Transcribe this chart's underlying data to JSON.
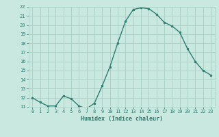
{
  "x": [
    0,
    1,
    2,
    3,
    4,
    5,
    6,
    7,
    8,
    9,
    10,
    11,
    12,
    13,
    14,
    15,
    16,
    17,
    18,
    19,
    20,
    21,
    22,
    23
  ],
  "y": [
    12.0,
    11.5,
    11.1,
    11.1,
    12.2,
    11.9,
    11.1,
    10.8,
    11.4,
    13.3,
    15.4,
    18.0,
    20.4,
    21.7,
    21.9,
    21.8,
    21.2,
    20.3,
    19.9,
    19.2,
    17.4,
    16.0,
    15.0,
    14.5
  ],
  "xlabel": "Humidex (Indice chaleur)",
  "ylim": [
    11,
    22
  ],
  "xlim": [
    -0.5,
    23.5
  ],
  "yticks": [
    11,
    12,
    13,
    14,
    15,
    16,
    17,
    18,
    19,
    20,
    21,
    22
  ],
  "xticks": [
    0,
    1,
    2,
    3,
    4,
    5,
    6,
    7,
    8,
    9,
    10,
    11,
    12,
    13,
    14,
    15,
    16,
    17,
    18,
    19,
    20,
    21,
    22,
    23
  ],
  "line_color": "#2e7d6e",
  "marker_color": "#2e7d6e",
  "bg_color": "#c8e8e0",
  "grid_color": "#a8cfc5",
  "label_color": "#2e7d6e",
  "tick_color": "#2e7d6e"
}
